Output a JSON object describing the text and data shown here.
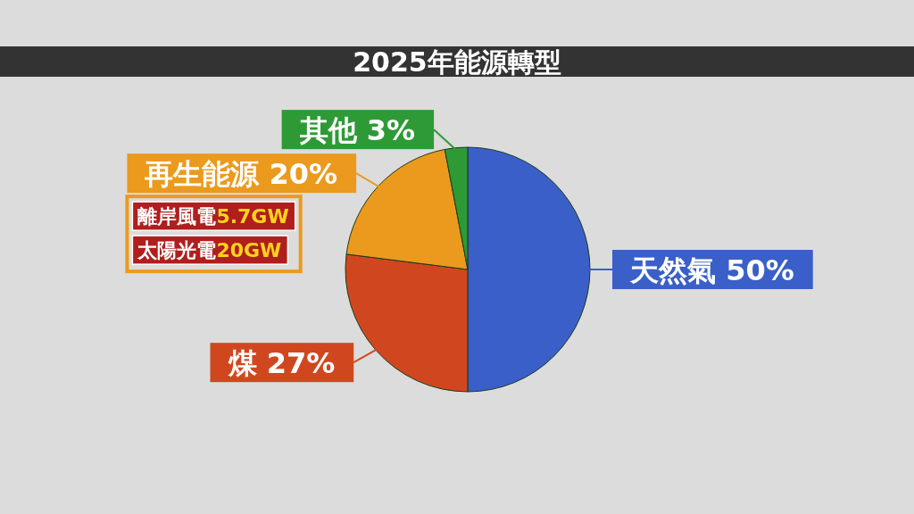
{
  "chart_data": {
    "type": "pie",
    "title": "2025年能源轉型",
    "categories": [
      "天然氣",
      "煤",
      "再生能源",
      "其他"
    ],
    "values": [
      50,
      27,
      20,
      3
    ],
    "value_labels": [
      "50%",
      "27%",
      "20%",
      "3%"
    ],
    "colors": [
      "#3a5fc8",
      "#d0471f",
      "#eb9a1e",
      "#2e9a36"
    ],
    "annotations": [
      "離岸風電5.7GW",
      "太陽光電20GW"
    ]
  }
}
